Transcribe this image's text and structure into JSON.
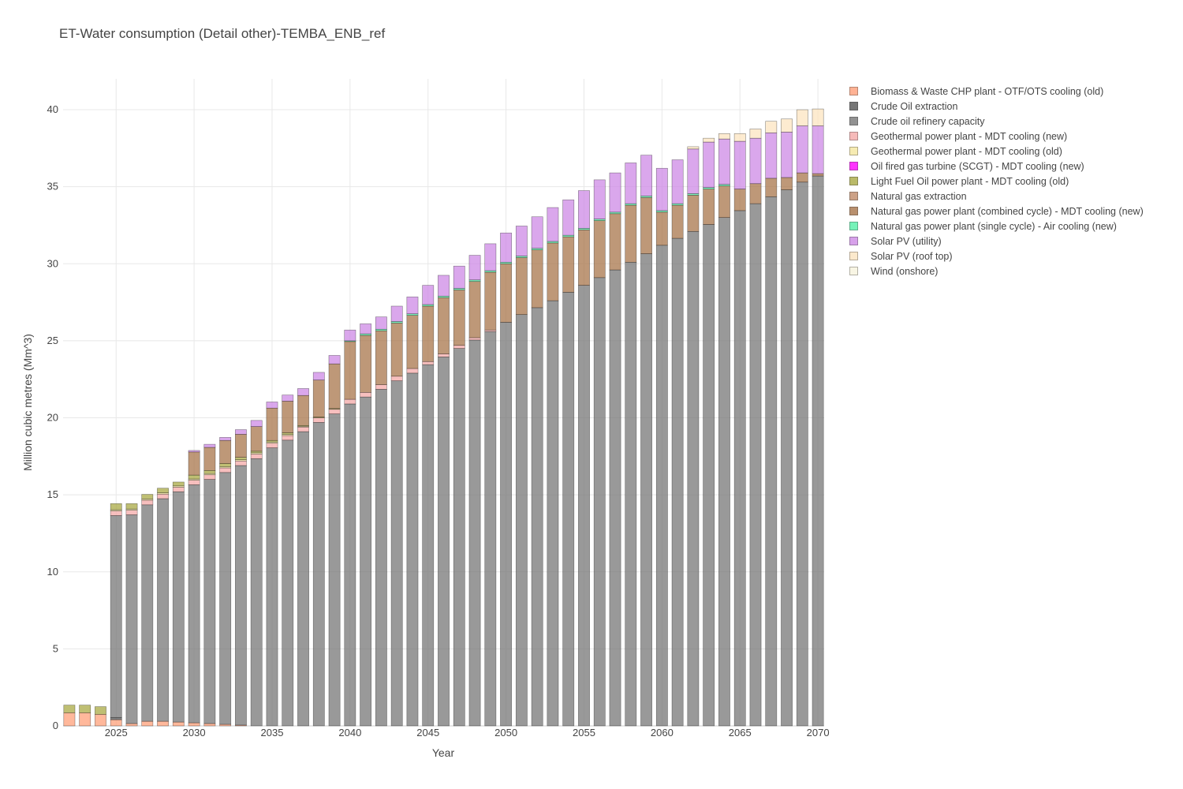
{
  "chart_data": {
    "type": "bar",
    "stacked": true,
    "title": "ET-Water consumption (Detail other)-TEMBA_ENB_ref",
    "xlabel": "Year",
    "ylabel": "Million cubic metres (Mm^3)",
    "xlim": [
      2021.6,
      2070.4
    ],
    "ylim": [
      0,
      42
    ],
    "x_ticks": [
      2025,
      2030,
      2035,
      2040,
      2045,
      2050,
      2055,
      2060,
      2065,
      2070
    ],
    "y_ticks": [
      0,
      5,
      10,
      15,
      20,
      25,
      30,
      35,
      40
    ],
    "grid": true,
    "legend_position": "top-right",
    "years": [
      2022,
      2023,
      2024,
      2025,
      2026,
      2027,
      2028,
      2029,
      2030,
      2031,
      2032,
      2033,
      2034,
      2035,
      2036,
      2037,
      2038,
      2039,
      2040,
      2041,
      2042,
      2043,
      2044,
      2045,
      2046,
      2047,
      2048,
      2049,
      2050,
      2051,
      2052,
      2053,
      2054,
      2055,
      2056,
      2057,
      2058,
      2059,
      2060,
      2061,
      2062,
      2063,
      2064,
      2065,
      2066,
      2067,
      2068,
      2069,
      2070
    ],
    "series": [
      {
        "name": "Biomass & Waste CHP plant - OTF/OTS cooling (old)",
        "color": "#FFA07A",
        "values": [
          0.85,
          0.85,
          0.75,
          0.4,
          0.15,
          0.3,
          0.3,
          0.25,
          0.2,
          0.15,
          0.1,
          0.05,
          0,
          0,
          0,
          0,
          0,
          0,
          0,
          0,
          0,
          0,
          0,
          0,
          0,
          0,
          0,
          0,
          0,
          0,
          0,
          0,
          0,
          0,
          0,
          0,
          0,
          0,
          0,
          0,
          0,
          0,
          0,
          0,
          0,
          0,
          0,
          0,
          0
        ]
      },
      {
        "name": "Crude Oil extraction",
        "color": "#555555",
        "values": [
          0,
          0,
          0,
          0.15,
          0,
          0,
          0,
          0,
          0,
          0,
          0,
          0,
          0,
          0,
          0,
          0,
          0,
          0,
          0,
          0,
          0,
          0,
          0,
          0,
          0,
          0,
          0,
          0,
          0,
          0,
          0,
          0,
          0,
          0,
          0,
          0,
          0,
          0,
          0,
          0,
          0,
          0,
          0,
          0,
          0,
          0,
          0,
          0,
          0
        ]
      },
      {
        "name": "Crude oil refinery capacity",
        "color": "#777777",
        "values": [
          0,
          0,
          0,
          13.1,
          13.55,
          14.05,
          14.45,
          14.95,
          15.45,
          15.85,
          16.35,
          16.85,
          17.35,
          18.05,
          18.55,
          19.1,
          19.7,
          20.25,
          20.9,
          21.35,
          21.85,
          22.4,
          22.9,
          23.45,
          23.95,
          24.5,
          25.05,
          25.6,
          26.2,
          26.7,
          27.15,
          27.6,
          28.15,
          28.6,
          29.1,
          29.6,
          30.1,
          30.65,
          31.2,
          31.65,
          32.1,
          32.55,
          33.0,
          33.45,
          33.9,
          34.35,
          34.8,
          35.3,
          35.7
        ]
      },
      {
        "name": "Geothermal power plant - MDT cooling (new)",
        "color": "#F4A9A8",
        "values": [
          0,
          0,
          0,
          0.3,
          0.3,
          0.3,
          0.3,
          0.3,
          0.3,
          0.3,
          0.3,
          0.3,
          0.3,
          0.3,
          0.3,
          0.3,
          0.3,
          0.3,
          0.3,
          0.3,
          0.3,
          0.3,
          0.3,
          0.2,
          0.2,
          0.2,
          0.15,
          0.1,
          0,
          0,
          0,
          0,
          0,
          0,
          0,
          0,
          0,
          0,
          0,
          0,
          0,
          0,
          0,
          0,
          0,
          0,
          0,
          0,
          0
        ]
      },
      {
        "name": "Geothermal power plant - MDT cooling (old)",
        "color": "#F5E7A0",
        "values": [
          0,
          0,
          0,
          0.08,
          0.08,
          0.08,
          0.08,
          0.08,
          0.08,
          0.08,
          0.08,
          0.08,
          0.08,
          0.08,
          0.08,
          0.05,
          0,
          0,
          0,
          0,
          0,
          0,
          0,
          0,
          0,
          0,
          0,
          0,
          0,
          0,
          0,
          0,
          0,
          0,
          0,
          0,
          0,
          0,
          0,
          0,
          0,
          0,
          0,
          0,
          0,
          0,
          0,
          0,
          0
        ]
      },
      {
        "name": "Oil fired gas turbine (SCGT) - MDT cooling (new)",
        "color": "#FF00FF",
        "values": [
          0,
          0,
          0,
          0,
          0,
          0,
          0,
          0,
          0,
          0,
          0,
          0,
          0,
          0,
          0,
          0,
          0,
          0,
          0,
          0,
          0,
          0,
          0,
          0,
          0,
          0,
          0,
          0,
          0,
          0,
          0,
          0,
          0,
          0,
          0,
          0,
          0,
          0,
          0,
          0,
          0,
          0,
          0,
          0,
          0,
          0,
          0,
          0,
          0
        ]
      },
      {
        "name": "Light Fuel Oil power plant - MDT cooling (old)",
        "color": "#AAAA44",
        "values": [
          0.5,
          0.5,
          0.5,
          0.4,
          0.35,
          0.3,
          0.3,
          0.25,
          0.25,
          0.2,
          0.2,
          0.15,
          0.1,
          0.1,
          0.1,
          0.05,
          0.05,
          0.05,
          0,
          0,
          0,
          0,
          0,
          0,
          0,
          0,
          0,
          0,
          0,
          0,
          0,
          0,
          0,
          0,
          0,
          0,
          0,
          0,
          0,
          0,
          0,
          0,
          0,
          0,
          0,
          0,
          0,
          0,
          0
        ]
      },
      {
        "name": "Natural gas extraction",
        "color": "#C08A68",
        "values": [
          0,
          0,
          0,
          0,
          0,
          0,
          0,
          0,
          0,
          0,
          0,
          0,
          0,
          0,
          0,
          0,
          0,
          0,
          0,
          0,
          0,
          0,
          0,
          0,
          0,
          0,
          0,
          0,
          0,
          0,
          0,
          0,
          0,
          0,
          0,
          0,
          0,
          0,
          0,
          0,
          0,
          0,
          0,
          0,
          0,
          0,
          0,
          0,
          0
        ]
      },
      {
        "name": "Natural gas power plant (combined cycle) - MDT cooling (new)",
        "color": "#A8754B",
        "values": [
          0,
          0,
          0,
          0,
          0,
          0,
          0,
          0,
          1.5,
          1.5,
          1.5,
          1.5,
          1.6,
          2.1,
          2.05,
          1.95,
          2.4,
          2.9,
          3.75,
          3.7,
          3.5,
          3.45,
          3.45,
          3.6,
          3.65,
          3.6,
          3.65,
          3.75,
          3.8,
          3.7,
          3.75,
          3.75,
          3.6,
          3.6,
          3.7,
          3.65,
          3.7,
          3.65,
          2.15,
          2.15,
          2.35,
          2.3,
          2.05,
          1.4,
          1.3,
          1.2,
          0.8,
          0.6,
          0.15
        ]
      },
      {
        "name": "Natural gas power plant (single cycle) - Air cooling (new)",
        "color": "#55F0A8",
        "values": [
          0,
          0,
          0,
          0,
          0,
          0,
          0,
          0,
          0,
          0,
          0,
          0,
          0,
          0,
          0,
          0,
          0,
          0,
          0.05,
          0.1,
          0.1,
          0.1,
          0.1,
          0.1,
          0.1,
          0.1,
          0.1,
          0.1,
          0.1,
          0.1,
          0.1,
          0.1,
          0.1,
          0.1,
          0.1,
          0.1,
          0.1,
          0.1,
          0.1,
          0.1,
          0.1,
          0.1,
          0.1,
          0,
          0,
          0,
          0,
          0,
          0
        ]
      },
      {
        "name": "Solar PV (utility)",
        "color": "#CE8AE6",
        "values": [
          0,
          0,
          0,
          0,
          0,
          0,
          0,
          0,
          0.1,
          0.2,
          0.2,
          0.3,
          0.4,
          0.4,
          0.4,
          0.45,
          0.5,
          0.55,
          0.7,
          0.65,
          0.8,
          1.0,
          1.1,
          1.25,
          1.35,
          1.45,
          1.6,
          1.75,
          1.9,
          1.95,
          2.05,
          2.2,
          2.3,
          2.45,
          2.55,
          2.55,
          2.65,
          2.65,
          2.75,
          2.85,
          2.9,
          2.95,
          2.95,
          3.1,
          2.95,
          2.95,
          2.95,
          3.05,
          3.1
        ]
      },
      {
        "name": "Solar PV (roof top)",
        "color": "#FCE4C0",
        "values": [
          0,
          0,
          0,
          0,
          0,
          0,
          0,
          0,
          0,
          0,
          0,
          0,
          0,
          0,
          0,
          0,
          0,
          0,
          0,
          0,
          0,
          0,
          0,
          0,
          0,
          0,
          0,
          0,
          0,
          0,
          0,
          0,
          0,
          0,
          0,
          0,
          0,
          0,
          0,
          0,
          0.15,
          0.25,
          0.35,
          0.5,
          0.6,
          0.75,
          0.85,
          1.05,
          1.1
        ]
      },
      {
        "name": "Wind (onshore)",
        "color": "#F7F3DE",
        "values": [
          0,
          0,
          0,
          0,
          0,
          0,
          0,
          0,
          0,
          0,
          0,
          0,
          0,
          0,
          0,
          0,
          0,
          0,
          0,
          0,
          0,
          0,
          0,
          0,
          0,
          0,
          0,
          0,
          0,
          0,
          0,
          0,
          0,
          0,
          0,
          0,
          0,
          0,
          0,
          0,
          0,
          0,
          0,
          0,
          0,
          0,
          0,
          0,
          0
        ]
      }
    ]
  }
}
